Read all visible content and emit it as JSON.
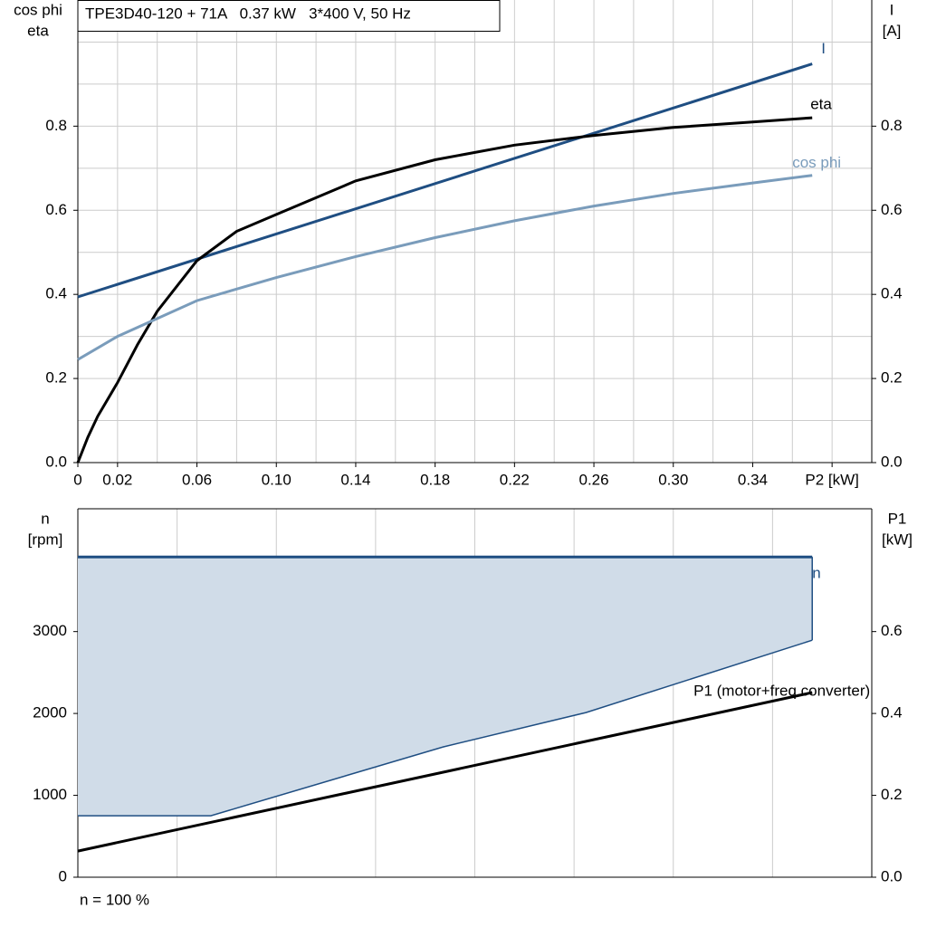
{
  "chart_data": [
    {
      "type": "line",
      "title": "TPE3D40-120 + 71A   0.37 kW   3*400 V, 50 Hz",
      "ylabel": [
        "cos phi",
        "eta"
      ],
      "y2label": [
        "I",
        "[A]"
      ],
      "xlim": [
        0,
        0.4
      ],
      "xticks": [
        0,
        0.02,
        0.06,
        {
          "value": 0.1,
          "label": "0.10"
        },
        0.14,
        0.18,
        0.22,
        0.26,
        {
          "value": 0.3,
          "label": "0.30"
        },
        0.34,
        {
          "value": 0.38,
          "label": "P2 [kW]"
        }
      ],
      "xgrid": [
        0.02,
        0.04,
        0.06,
        0.08,
        0.1,
        0.12,
        0.14,
        0.16,
        0.18,
        0.2,
        0.22,
        0.24,
        0.26,
        0.28,
        0.3,
        0.32,
        0.34,
        0.36,
        0.38
      ],
      "ylim": [
        0,
        1.1
      ],
      "yticks": [
        {
          "value": 0,
          "label": "0.0"
        },
        {
          "value": 0.2,
          "label": "0.2"
        },
        {
          "value": 0.4,
          "label": "0.4"
        },
        {
          "value": 0.6,
          "label": "0.6"
        },
        {
          "value": 0.8,
          "label": "0.8"
        }
      ],
      "ygrid": [
        0.1,
        0.2,
        0.3,
        0.4,
        0.5,
        0.6,
        0.7,
        0.8,
        0.9,
        1.0
      ],
      "y2lim": [
        0,
        1.1
      ],
      "y2ticks": [
        {
          "value": 0,
          "label": "0.0"
        },
        {
          "value": 0.2,
          "label": "0.2"
        },
        {
          "value": 0.4,
          "label": "0.4"
        },
        {
          "value": 0.6,
          "label": "0.6"
        },
        {
          "value": 0.8,
          "label": "0.8"
        }
      ],
      "series": [
        {
          "name": "I",
          "color": "#1f4e82",
          "axis": "y2",
          "x": [
            0,
            0.37
          ],
          "values": [
            0.394,
            0.948
          ]
        },
        {
          "name": "eta",
          "color": "#000000",
          "x": [
            0,
            0.005,
            0.01,
            0.02,
            0.03,
            0.04,
            0.06,
            0.08,
            0.1,
            0.14,
            0.18,
            0.22,
            0.26,
            0.3,
            0.34,
            0.37
          ],
          "values": [
            0,
            0.06,
            0.11,
            0.19,
            0.28,
            0.36,
            0.48,
            0.55,
            0.59,
            0.67,
            0.72,
            0.755,
            0.778,
            0.797,
            0.81,
            0.82
          ]
        },
        {
          "name": "cos phi",
          "color": "#7a9cbb",
          "x": [
            0,
            0.02,
            0.06,
            0.1,
            0.14,
            0.18,
            0.22,
            0.26,
            0.3,
            0.34,
            0.37
          ],
          "values": [
            0.245,
            0.3,
            0.385,
            0.44,
            0.49,
            0.535,
            0.575,
            0.61,
            0.64,
            0.665,
            0.683
          ]
        }
      ]
    },
    {
      "type": "area",
      "ylabel": [
        "n",
        "[rpm]"
      ],
      "y2label": [
        "P1",
        "[kW]"
      ],
      "note": "n = 100 %",
      "xlim": [
        0,
        0.4
      ],
      "xgrid": [
        0.05,
        0.1,
        0.15,
        0.2,
        0.25,
        0.3,
        0.35
      ],
      "ylim": [
        0,
        4500
      ],
      "yticks": [
        0,
        1000,
        2000,
        3000
      ],
      "y2lim": [
        0,
        0.9
      ],
      "y2ticks": [
        {
          "value": 0,
          "label": "0.0"
        },
        {
          "value": 0.2,
          "label": "0.2"
        },
        {
          "value": 0.4,
          "label": "0.4"
        },
        {
          "value": 0.6,
          "label": "0.6"
        }
      ],
      "fill": "#d0dce8",
      "series": [
        {
          "name": "n",
          "color": "#1f4e82",
          "x": [
            0,
            0.067,
            0.184,
            0.256,
            0.37
          ],
          "values": [
            3912,
            3912,
            3912,
            3912,
            3912
          ],
          "lower": [
            751,
            751,
            1591,
            2011,
            2895
          ]
        },
        {
          "name": "P1 (motor+freq.converter)",
          "color": "#000000",
          "axis": "y2",
          "x": [
            0,
            0.37
          ],
          "values": [
            0.064,
            0.451
          ]
        }
      ]
    }
  ]
}
